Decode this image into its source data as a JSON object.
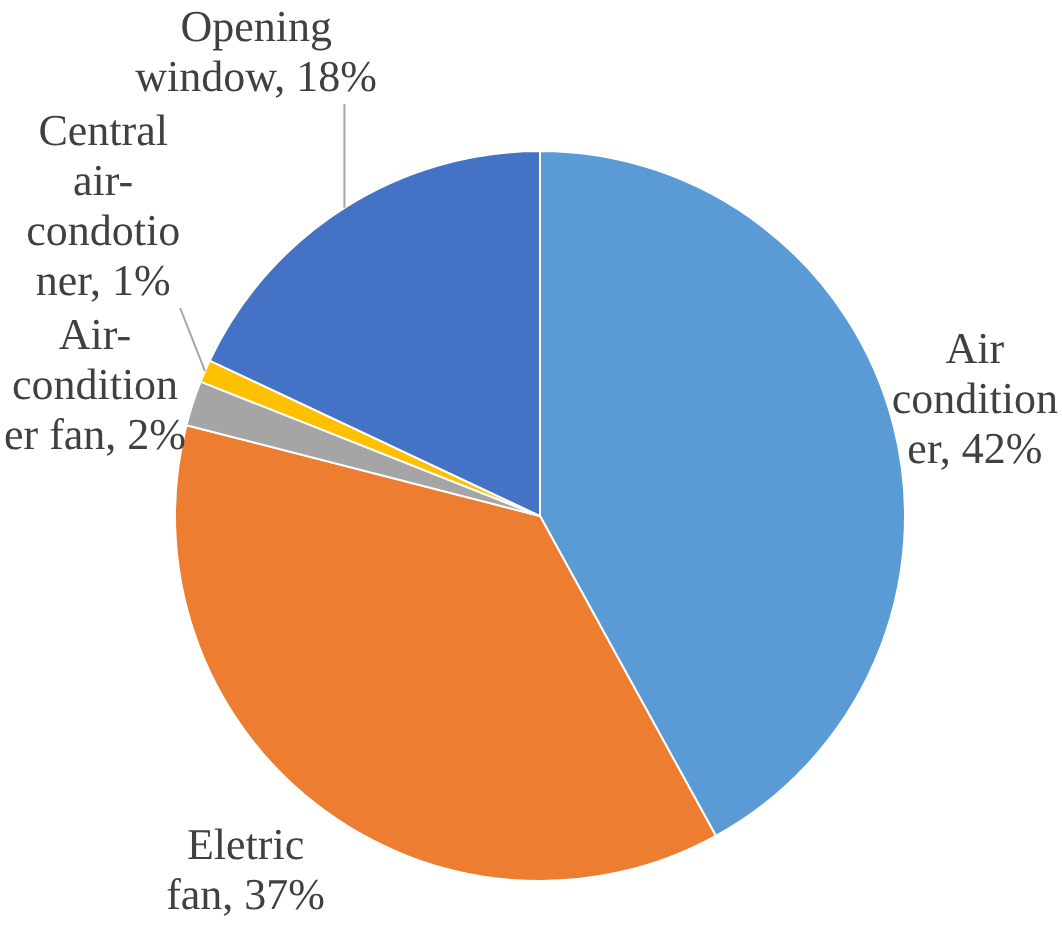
{
  "chart_data": {
    "type": "pie",
    "categories": [
      "Air conditioner",
      "Eletric fan",
      "Air-conditioner fan",
      "Central air-condotioner",
      "Opening window"
    ],
    "values": [
      42,
      37,
      2,
      1,
      18
    ],
    "colors": [
      "#5b9bd5",
      "#ed7d31",
      "#a5a5a5",
      "#ffc000",
      "#4472c4"
    ],
    "value_labels": [
      "42%",
      "37%",
      "2%",
      "1%",
      "18%"
    ]
  }
}
